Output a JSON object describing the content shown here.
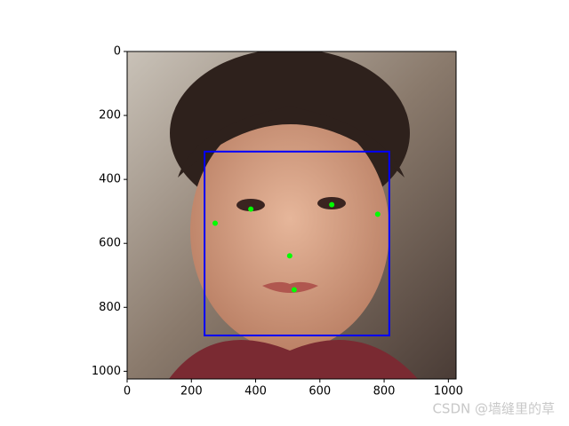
{
  "chart_data": {
    "type": "image",
    "xlim": [
      0,
      1024
    ],
    "ylim": [
      1024,
      0
    ],
    "xticks": [
      0,
      200,
      400,
      600,
      800,
      1000
    ],
    "yticks": [
      0,
      200,
      400,
      600,
      800,
      1000
    ],
    "box": {
      "x0": 241,
      "y0": 313,
      "x1": 816,
      "y1": 888,
      "color": "#0000ff"
    },
    "keypoints": {
      "x": [
        385,
        637,
        274,
        780,
        506,
        520
      ],
      "y": [
        493,
        479,
        537,
        509,
        639,
        745
      ],
      "color": "#00ff00"
    },
    "watermark": "CSDN @墙缝里的草"
  }
}
